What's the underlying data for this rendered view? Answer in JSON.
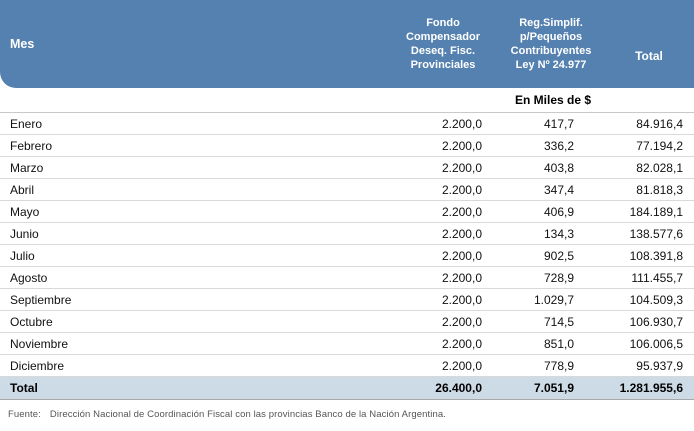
{
  "colors": {
    "header_bg": "#5581b0",
    "header_text": "#ffffff",
    "total_row_bg": "#cddbe7",
    "row_border": "#d9d9d9",
    "source_text": "#555555"
  },
  "table": {
    "columns": [
      {
        "label": "Mes"
      },
      {
        "lines": [
          "Fondo",
          "Compensador",
          "Deseq. Fisc.",
          "Provinciales"
        ]
      },
      {
        "lines": [
          "Reg.Simplif.",
          "p/Pequeños",
          "Contribuyentes",
          "Ley Nº 24.977"
        ]
      },
      {
        "label": "Total"
      }
    ],
    "unit_label": "En Miles de $",
    "rows": [
      {
        "month": "Enero",
        "fondo": "2.200,0",
        "reg": "417,7",
        "total": "84.916,4"
      },
      {
        "month": "Febrero",
        "fondo": "2.200,0",
        "reg": "336,2",
        "total": "77.194,2"
      },
      {
        "month": "Marzo",
        "fondo": "2.200,0",
        "reg": "403,8",
        "total": "82.028,1"
      },
      {
        "month": "Abril",
        "fondo": "2.200,0",
        "reg": "347,4",
        "total": "81.818,3"
      },
      {
        "month": "Mayo",
        "fondo": "2.200,0",
        "reg": "406,9",
        "total": "184.189,1"
      },
      {
        "month": "Junio",
        "fondo": "2.200,0",
        "reg": "134,3",
        "total": "138.577,6"
      },
      {
        "month": "Julio",
        "fondo": "2.200,0",
        "reg": "902,5",
        "total": "108.391,8"
      },
      {
        "month": "Agosto",
        "fondo": "2.200,0",
        "reg": "728,9",
        "total": "111.455,7"
      },
      {
        "month": "Septiembre",
        "fondo": "2.200,0",
        "reg": "1.029,7",
        "total": "104.509,3"
      },
      {
        "month": "Octubre",
        "fondo": "2.200,0",
        "reg": "714,5",
        "total": "106.930,7"
      },
      {
        "month": "Noviembre",
        "fondo": "2.200,0",
        "reg": "851,0",
        "total": "106.006,5"
      },
      {
        "month": "Diciembre",
        "fondo": "2.200,0",
        "reg": "778,9",
        "total": "95.937,9"
      }
    ],
    "total_row": {
      "month": "Total",
      "fondo": "26.400,0",
      "reg": "7.051,9",
      "total": "1.281.955,6"
    }
  },
  "source": {
    "label": "Fuente:",
    "text": "Dirección Nacional de Coordinación Fiscal con las provincias Banco de la Nación Argentina."
  }
}
